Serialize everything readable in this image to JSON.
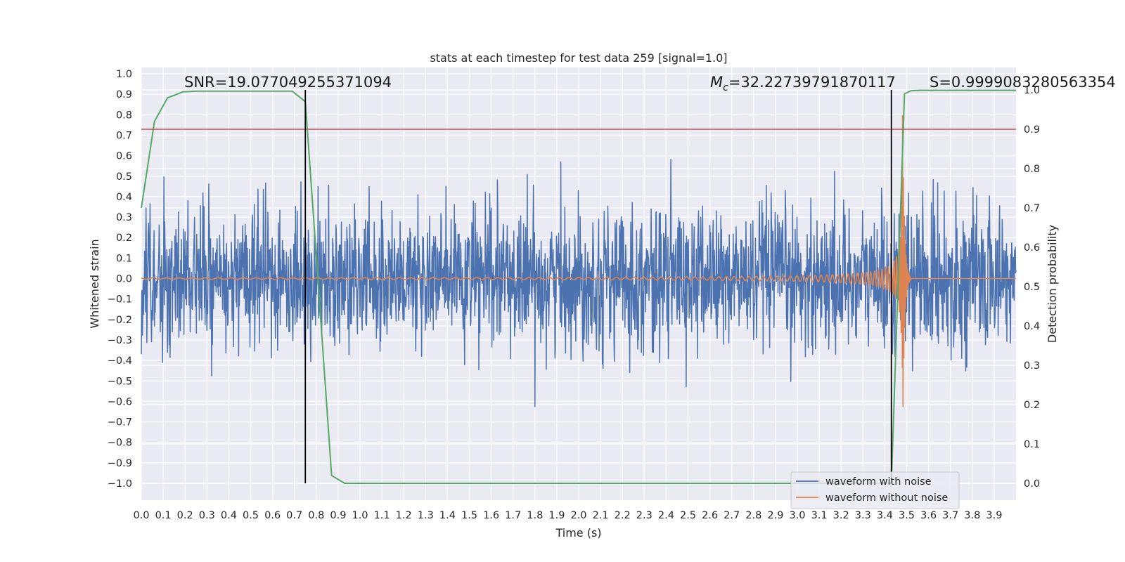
{
  "chart_data": {
    "type": "line",
    "title": "stats at each timestep for test data 259 [signal=1.0]",
    "xlabel": "Time (s)",
    "ylabel_left": "Whitened strain",
    "ylabel_right": "Detection probability",
    "xlim": [
      0.0,
      4.0
    ],
    "ylim_left": [
      -1.1,
      1.02
    ],
    "ylim_right": [
      -0.05,
      1.0
    ],
    "x_ticks": [
      "0.0",
      "0.1",
      "0.2",
      "0.3",
      "0.4",
      "0.5",
      "0.6",
      "0.7",
      "0.8",
      "0.9",
      "1.0",
      "1.1",
      "1.2",
      "1.3",
      "1.4",
      "1.5",
      "1.6",
      "1.7",
      "1.8",
      "1.9",
      "2.0",
      "2.1",
      "2.2",
      "2.3",
      "2.4",
      "2.5",
      "2.6",
      "2.7",
      "2.8",
      "2.9",
      "3.0",
      "3.1",
      "3.2",
      "3.3",
      "3.4",
      "3.5",
      "3.6",
      "3.7",
      "3.8",
      "3.9"
    ],
    "y_ticks_left": [
      "1.0",
      "0.9",
      "0.8",
      "0.7",
      "0.6",
      "0.5",
      "0.4",
      "0.3",
      "0.2",
      "0.1",
      "0.0",
      "−0.1",
      "−0.2",
      "−0.3",
      "−0.4",
      "−0.5",
      "−0.6",
      "−0.7",
      "−0.8",
      "−0.9",
      "−1.0"
    ],
    "y_ticks_right": [
      "1.0",
      "0.9",
      "0.8",
      "0.7",
      "0.6",
      "0.5",
      "0.4",
      "0.3",
      "0.2",
      "0.1",
      "0.0"
    ],
    "grid": true,
    "annotations": {
      "snr": "SNR=19.077049255371094",
      "mc_symbol": "M",
      "mc_sub": "c",
      "mc_value": "=32.22739791870117",
      "s": "S=0.9999083280563354"
    },
    "vertical_lines_x": [
      0.75,
      3.43
    ],
    "threshold_probability": 0.9,
    "series": [
      {
        "name": "waveform with noise",
        "color": "#4c72b0",
        "description_type": "noisy strain, amplitude approx ±0.4, spikes to ±0.75"
      },
      {
        "name": "waveform without noise",
        "color": "#dd8452",
        "description_type": "inspiral chirp, merger at x≈3.48"
      },
      {
        "color": "#55a868",
        "x": [
          0.0,
          0.06,
          0.12,
          0.19,
          0.25,
          0.31,
          0.37,
          0.44,
          0.5,
          0.56,
          0.62,
          0.69,
          0.75,
          0.81,
          0.87,
          0.93,
          1.0,
          1.5,
          2.0,
          2.5,
          3.0,
          3.38,
          3.43,
          3.46,
          3.49,
          3.52,
          3.56,
          3.62,
          3.75,
          3.88,
          4.0
        ],
        "values": [
          0.7,
          0.92,
          0.98,
          0.995,
          0.997,
          0.997,
          0.997,
          0.997,
          0.997,
          0.997,
          0.997,
          0.997,
          0.97,
          0.5,
          0.02,
          0.0,
          0.0,
          0.0,
          0.0,
          0.0,
          0.0,
          0.0,
          0.0,
          0.5,
          0.99,
          0.998,
          0.999,
          0.999,
          0.999,
          0.999,
          0.999
        ]
      }
    ],
    "legend_position": "lower-right",
    "colors": {
      "background": "#eaeaf2",
      "grid": "#ffffff",
      "threshold": "#c44e52",
      "vline": "#000000"
    }
  }
}
